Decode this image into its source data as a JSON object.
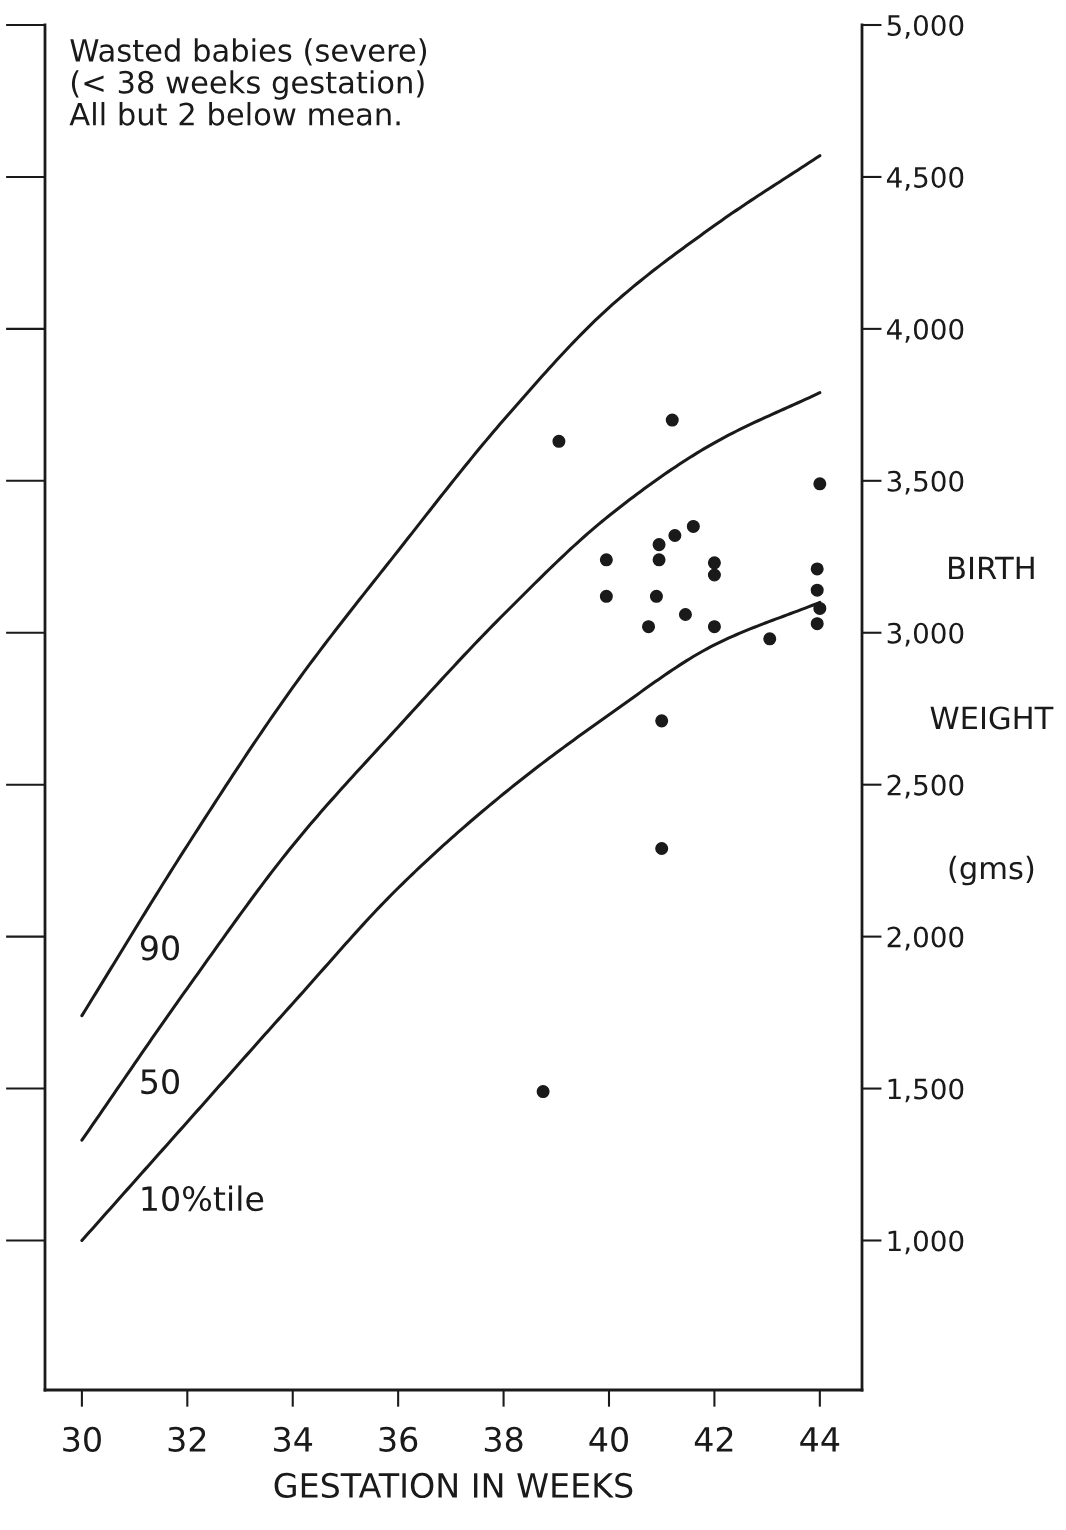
{
  "chart_data": {
    "type": "line",
    "annotations": [
      "Wasted babies (severe)\n(< 38 weeks gestation)\nAll but 2 below mean."
    ],
    "xlabel": "GESTATION IN WEEKS",
    "ylabel": "BIRTH WEIGHT (gms)",
    "xlim": [
      29.3,
      44.8
    ],
    "xticks": [
      30,
      32,
      34,
      36,
      38,
      40,
      42,
      44
    ],
    "ylim": [
      508,
      5000
    ],
    "yticks": [
      {
        "value": 1000,
        "label": "1,000"
      },
      {
        "value": 1500,
        "label": "1,500"
      },
      {
        "value": 2000,
        "label": "2,000"
      },
      {
        "value": 2500,
        "label": "2,500"
      },
      {
        "value": 3000,
        "label": "3,000"
      },
      {
        "value": 3500,
        "label": "3,500"
      },
      {
        "value": 4000,
        "label": "4,000"
      },
      {
        "value": 4500,
        "label": "4,500"
      },
      {
        "value": 5000,
        "label": "5,000"
      }
    ],
    "grid": false,
    "legend": false,
    "line_style": "solid",
    "series": [
      {
        "name": "90",
        "color": "#1a1a1a",
        "x": [
          30,
          32,
          34,
          36,
          38,
          40,
          42,
          44
        ],
        "values": [
          1740,
          2300,
          2820,
          3270,
          3700,
          4070,
          4340,
          4570
        ]
      },
      {
        "name": "50",
        "color": "#1a1a1a",
        "x": [
          30,
          32,
          34,
          36,
          38,
          40,
          42,
          44
        ],
        "values": [
          1330,
          1830,
          2300,
          2690,
          3060,
          3385,
          3625,
          3790
        ]
      },
      {
        "name": "10%tile",
        "color": "#1a1a1a",
        "x": [
          30,
          32,
          34,
          36,
          38,
          40,
          42,
          44
        ],
        "values": [
          1000,
          1390,
          1780,
          2160,
          2470,
          2730,
          2960,
          3100
        ]
      },
      {
        "type": "scatter",
        "marker": "circle",
        "color": "#1a1a1a",
        "x": [
          39.05,
          41.2,
          44.0,
          41.6,
          41.25,
          40.95,
          40.95,
          39.95,
          42.0,
          42.0,
          43.95,
          43.95,
          39.95,
          40.9,
          44.0,
          41.45,
          40.75,
          42.0,
          43.95,
          43.05,
          41.0,
          41.0,
          38.75
        ],
        "values": [
          3630,
          3700,
          3490,
          3350,
          3320,
          3290,
          3240,
          3240,
          3230,
          3190,
          3210,
          3140,
          3120,
          3120,
          3080,
          3060,
          3020,
          3020,
          3030,
          2980,
          2710,
          2290,
          1490
        ]
      }
    ]
  }
}
